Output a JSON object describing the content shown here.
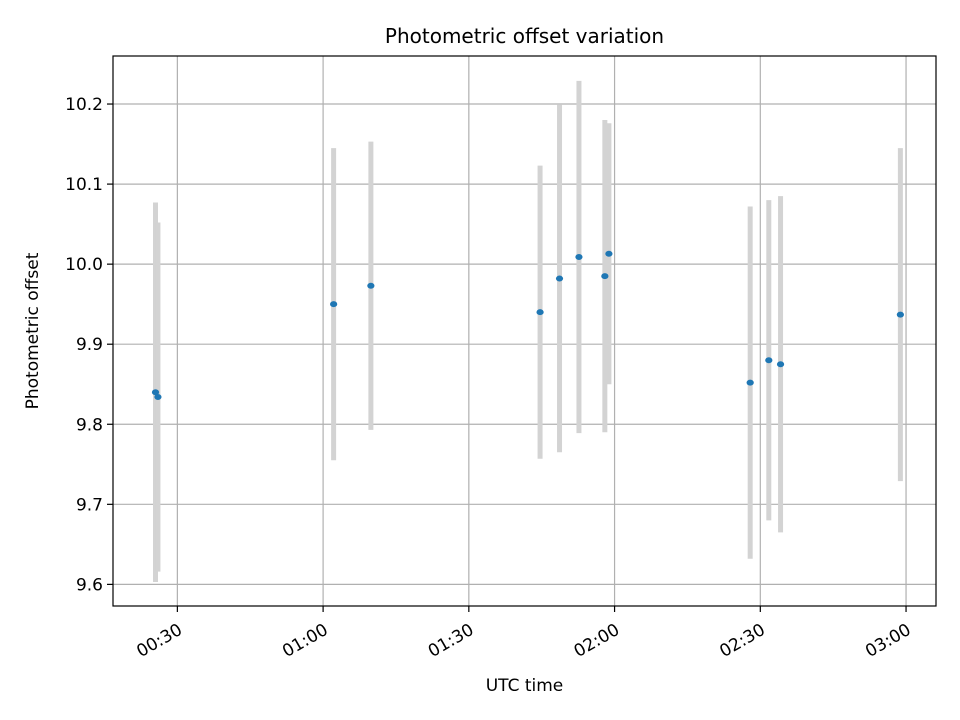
{
  "chart_data": {
    "type": "scatter",
    "title": "Photometric offset variation",
    "xlabel": "UTC time",
    "ylabel": "Photometric offset",
    "x_ticks": [
      "00:30",
      "01:00",
      "01:30",
      "02:00",
      "02:30",
      "03:00"
    ],
    "y_ticks": [
      "9.6",
      "9.7",
      "9.8",
      "9.9",
      "10.0",
      "10.1",
      "10.2"
    ],
    "xlim": [
      "00:16:45",
      "03:06:10"
    ],
    "ylim": [
      9.573,
      10.26
    ],
    "grid": true,
    "series": [
      {
        "marker_color": "#1f77b4",
        "errorbar_color": "#d3d3d3",
        "points": [
          {
            "x": "00:25:30",
            "y": 9.84,
            "err": 0.237
          },
          {
            "x": "00:26:00",
            "y": 9.834,
            "err": 0.218
          },
          {
            "x": "01:02:10",
            "y": 9.95,
            "err": 0.195
          },
          {
            "x": "01:09:50",
            "y": 9.973,
            "err": 0.18
          },
          {
            "x": "01:44:40",
            "y": 9.94,
            "err": 0.183
          },
          {
            "x": "01:48:40",
            "y": 9.982,
            "err": 0.217
          },
          {
            "x": "01:52:40",
            "y": 10.009,
            "err": 0.22
          },
          {
            "x": "01:58:00",
            "y": 9.985,
            "err": 0.195
          },
          {
            "x": "01:58:50",
            "y": 10.013,
            "err": 0.163
          },
          {
            "x": "02:27:55",
            "y": 9.852,
            "err": 0.22
          },
          {
            "x": "02:31:45",
            "y": 9.88,
            "err": 0.2
          },
          {
            "x": "02:34:10",
            "y": 9.875,
            "err": 0.21
          },
          {
            "x": "02:58:50",
            "y": 9.937,
            "err": 0.208
          }
        ]
      }
    ]
  }
}
